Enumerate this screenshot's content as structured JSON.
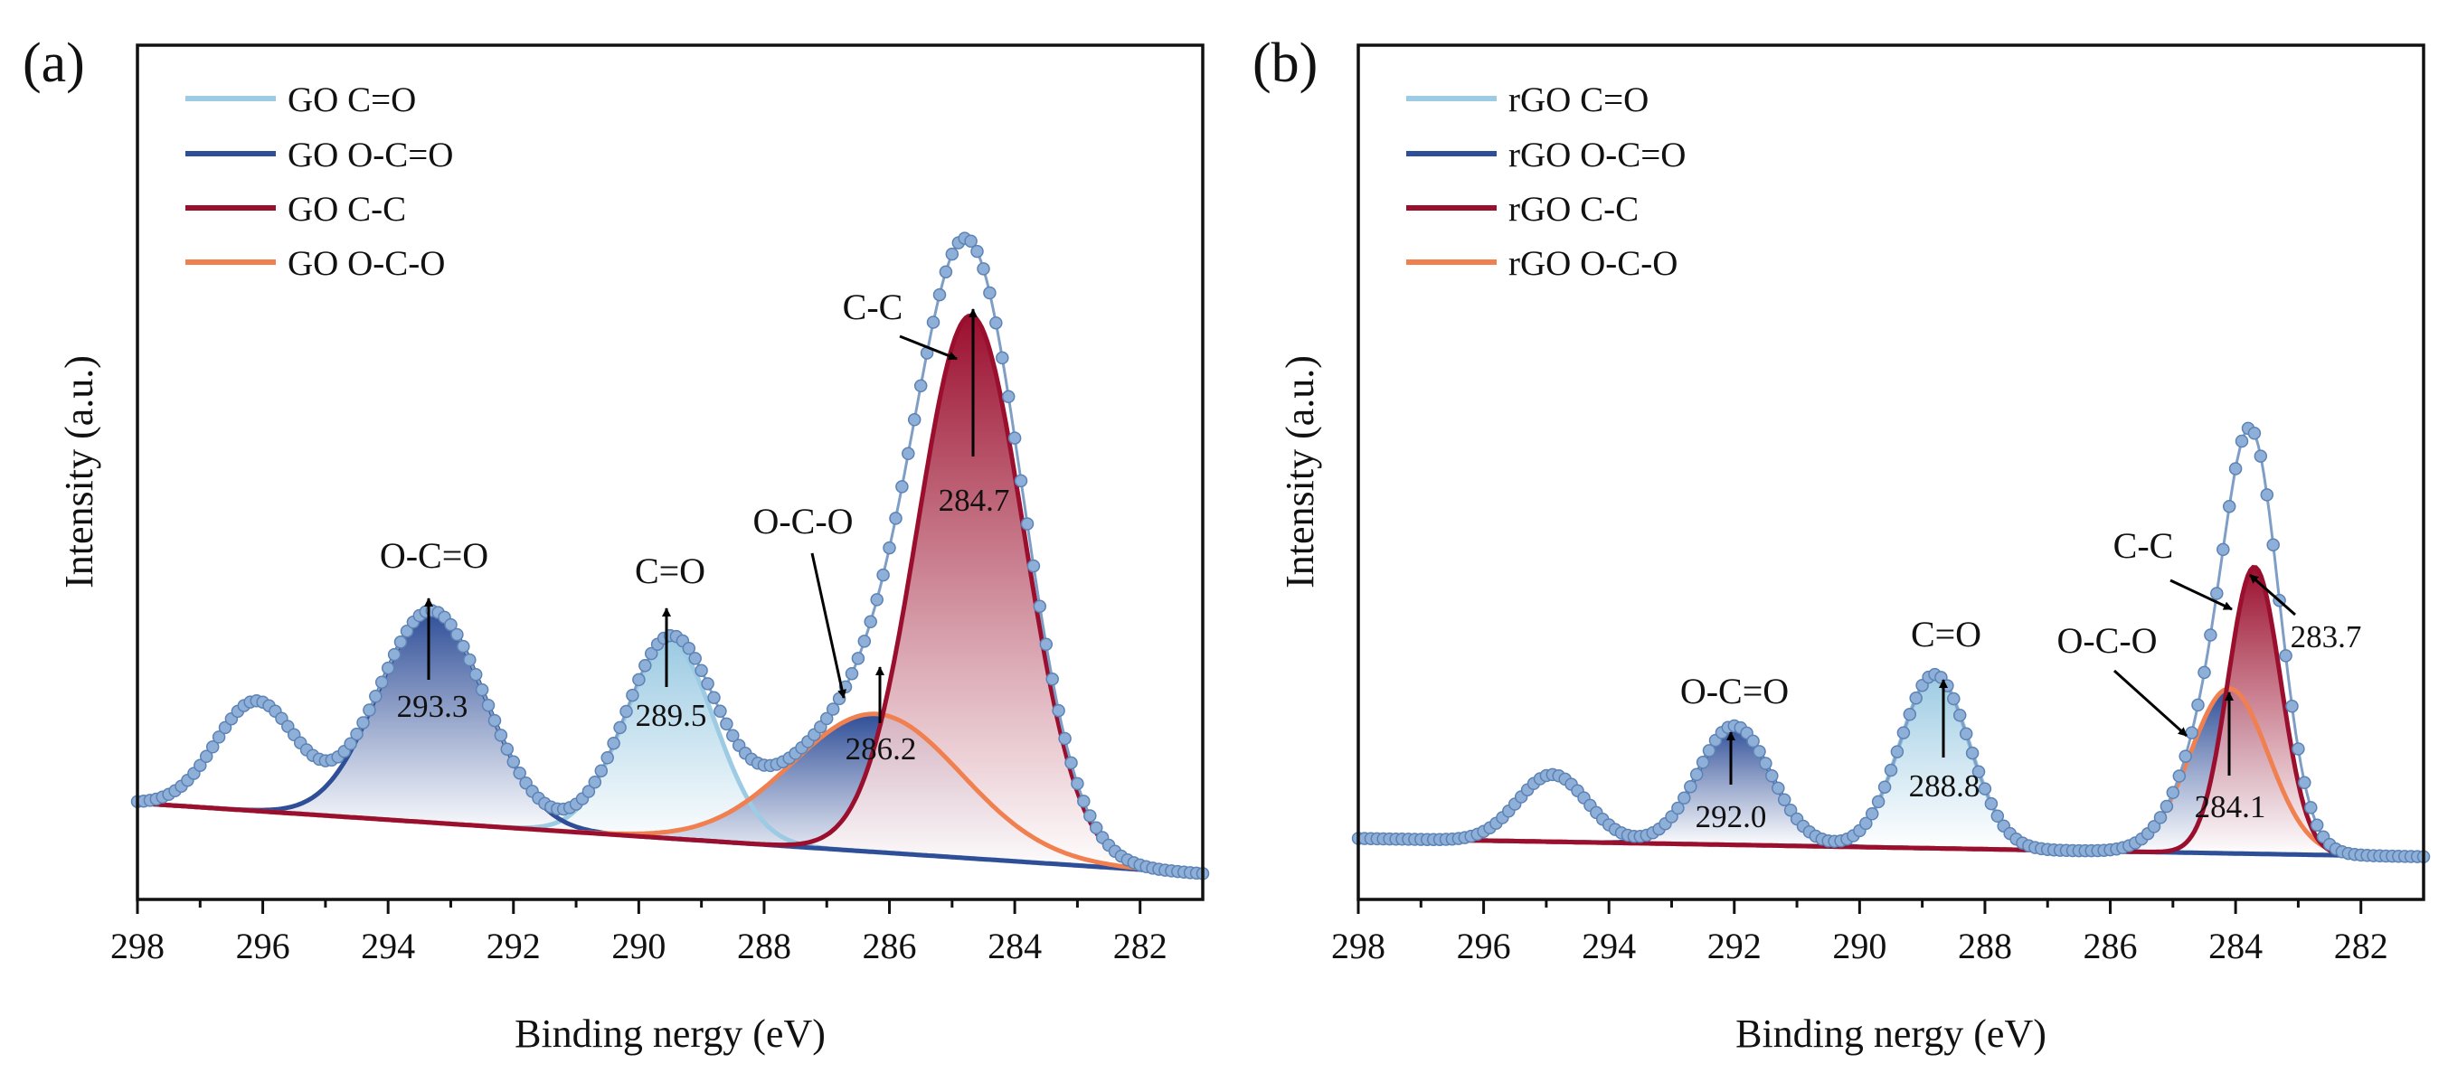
{
  "chart_data": [
    {
      "panel": "(a)",
      "type": "line",
      "xlabel": "Binding nergy (eV)",
      "ylabel": "Intensity (a.u.)",
      "xlim": [
        298,
        281
      ],
      "ylim": [
        -0.15,
        1.18
      ],
      "xticks": [
        298,
        296,
        294,
        292,
        290,
        288,
        286,
        284,
        282
      ],
      "legend_position": "top-left",
      "legend": [
        "GO C=O",
        "GO O-C=O",
        "GO C-C",
        "GO O-C-O"
      ],
      "colors": {
        "C=O": "#9ccbe3",
        "O-C=O": "#2f4e98",
        "C-C": "#9b0f2e",
        "O-C-O": "#f08050",
        "data": "#6e96c8"
      },
      "baseline": {
        "x": [
          298,
          281
        ],
        "y": [
          0.0,
          -0.11
        ]
      },
      "components": [
        {
          "name": "GO C=O",
          "label": "C=O",
          "center": 289.5,
          "height": 0.305,
          "sigma": 0.72
        },
        {
          "name": "GO O-C=O",
          "label": "O-C=O",
          "center": 293.3,
          "height": 0.33,
          "sigma": 0.85
        },
        {
          "name": "GO C-C",
          "label": "C-C",
          "center": 284.7,
          "height": 0.845,
          "sigma": 0.85
        },
        {
          "name": "GO O-C-O",
          "label": "O-C-O",
          "center": 286.2,
          "height": 0.215,
          "sigma": 1.35
        }
      ],
      "extra_peak": {
        "center": 296.1,
        "height": 0.17,
        "sigma": 0.65
      },
      "annotations": [
        {
          "text": "O-C=O",
          "value": "293.3"
        },
        {
          "text": "C=O",
          "value": "289.5"
        },
        {
          "text": "O-C-O",
          "value": "286.2"
        },
        {
          "text": "C-C",
          "value": "284.7"
        }
      ]
    },
    {
      "panel": "(b)",
      "type": "line",
      "xlabel": "Binding nergy (eV)",
      "ylabel": "Intensity (a.u.)",
      "xlim": [
        298,
        281
      ],
      "ylim": [
        -0.1,
        1.3
      ],
      "xticks": [
        298,
        296,
        294,
        292,
        290,
        288,
        286,
        284,
        282
      ],
      "legend_position": "top-left",
      "legend": [
        "rGO C=O",
        "rGO O-C=O",
        "rGO C-C",
        "rGO O-C-O"
      ],
      "colors": {
        "C=O": "#9ccbe3",
        "O-C=O": "#2f4e98",
        "C-C": "#9b0f2e",
        "O-C-O": "#f08050",
        "data": "#6e96c8"
      },
      "baseline": {
        "x": [
          298,
          281
        ],
        "y": [
          0.0,
          -0.03
        ]
      },
      "components": [
        {
          "name": "rGO C=O",
          "label": "C=O",
          "center": 288.8,
          "height": 0.285,
          "sigma": 0.55
        },
        {
          "name": "rGO O-C=O",
          "label": "O-C=O",
          "center": 292.0,
          "height": 0.195,
          "sigma": 0.58
        },
        {
          "name": "rGO C-C",
          "label": "C-C",
          "center": 283.7,
          "height": 0.47,
          "sigma": 0.42
        },
        {
          "name": "rGO O-C-O",
          "label": "O-C-O",
          "center": 284.1,
          "height": 0.27,
          "sigma": 0.62
        }
      ],
      "extra_peak": {
        "center": 294.9,
        "height": 0.11,
        "sigma": 0.55
      },
      "annotations": [
        {
          "text": "O-C=O",
          "value": "292.0"
        },
        {
          "text": "C=O",
          "value": "288.8"
        },
        {
          "text": "O-C-O",
          "value": "284.1"
        },
        {
          "text": "C-C",
          "value": "283.7"
        }
      ]
    }
  ]
}
